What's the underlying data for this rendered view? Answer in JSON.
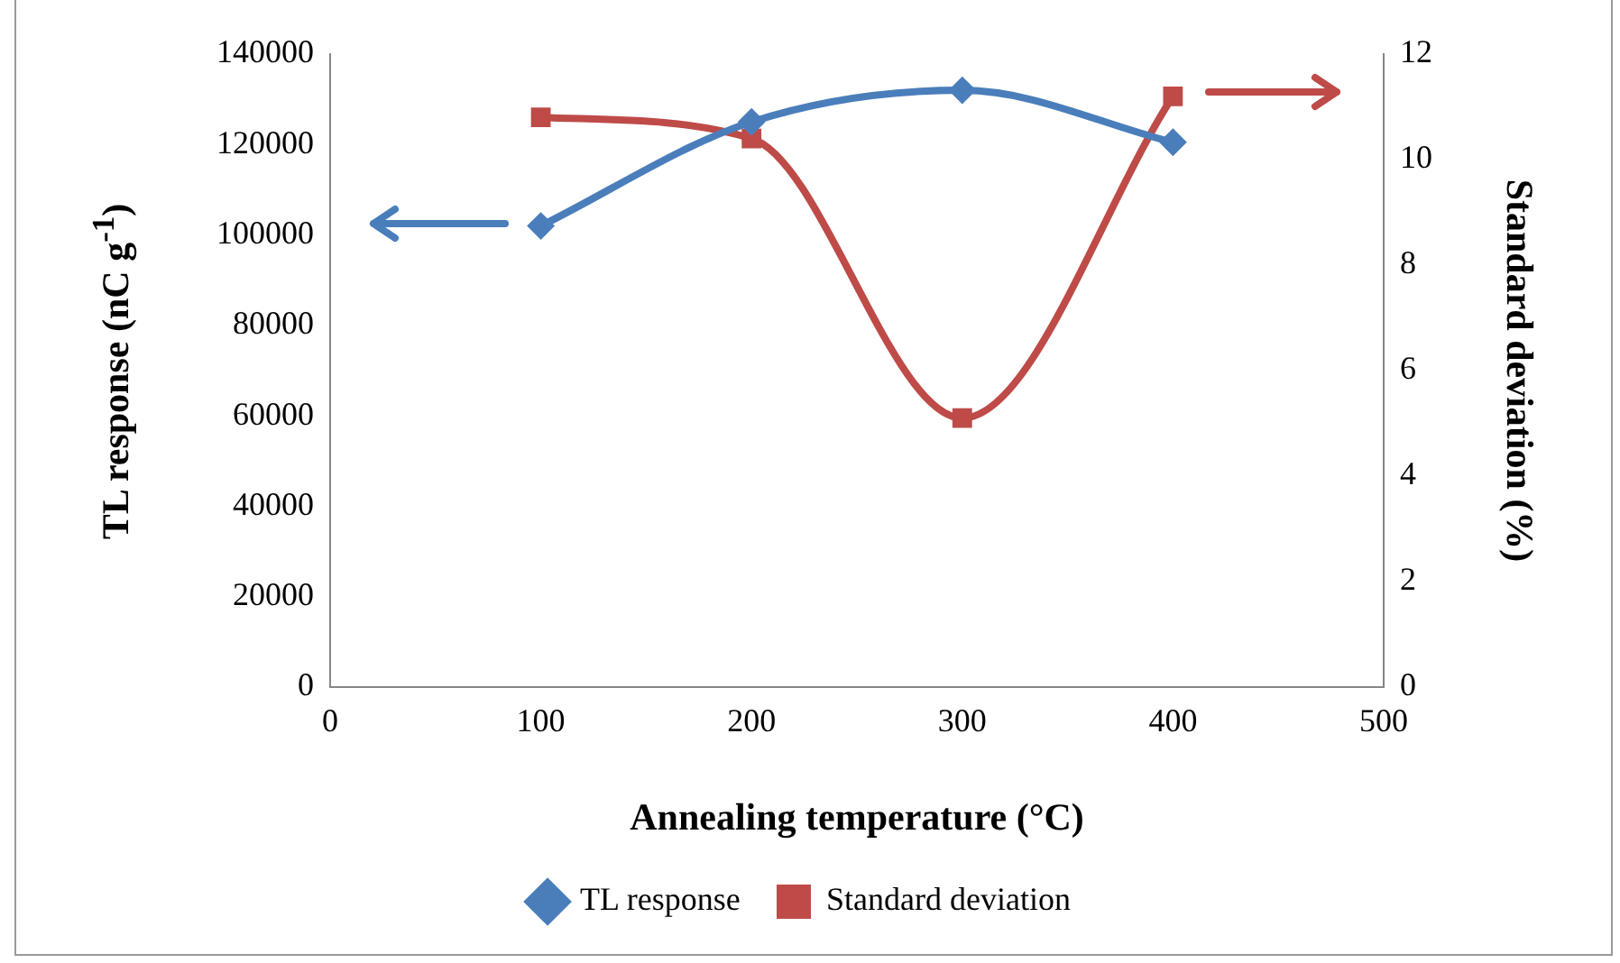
{
  "chart_data": {
    "type": "line",
    "xlabel": "Annealing temperature (°C)",
    "ylabel": "TL response (nC g$^{-1}$)",
    "y2label": "Standard deviation (%)",
    "x": [
      100,
      200,
      300,
      400
    ],
    "series": [
      {
        "name": "TL response",
        "color": "#4a7ebb",
        "values": [
          102000,
          125000,
          132000,
          120500
        ],
        "marker": "diamond"
      },
      {
        "name": "Standard deviation",
        "color": "#be4b48",
        "values": [
          10.8,
          10.4,
          5.1,
          11.2
        ],
        "axis": "y2",
        "marker": "square"
      }
    ],
    "xlim": [
      0,
      500
    ],
    "xticks": [
      0,
      100,
      200,
      300,
      400,
      500
    ],
    "ylim": [
      0,
      140000
    ],
    "yticks": [
      0,
      20000,
      40000,
      60000,
      80000,
      100000,
      120000,
      140000
    ],
    "y2lim": [
      0,
      12
    ],
    "y2ticks": [
      0,
      2,
      4,
      6,
      8,
      10,
      12
    ],
    "grid": false,
    "legend": "bottom"
  }
}
